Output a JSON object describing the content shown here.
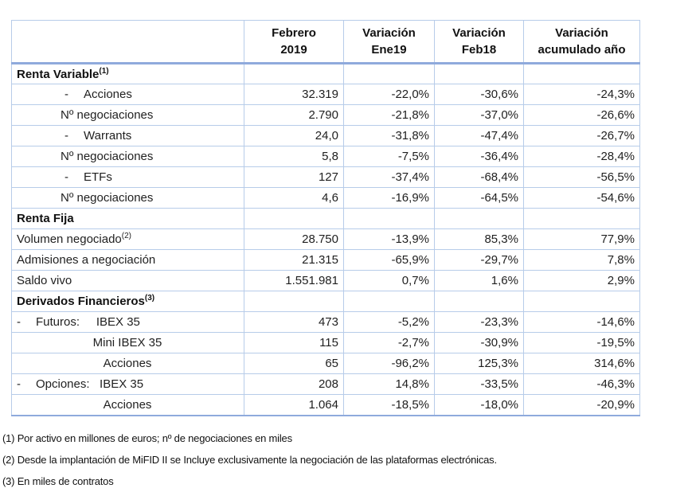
{
  "colors": {
    "border_light": "#B7CCE9",
    "border_heavy": "#8FAADC",
    "text": "#1f1f1f"
  },
  "table": {
    "dash_glyph": "-",
    "headers": [
      {
        "line1": "Febrero",
        "line2": "2019"
      },
      {
        "line1": "Variación",
        "line2": "Ene19"
      },
      {
        "line1": "Variación",
        "line2": "Feb18"
      },
      {
        "line1": "Variación",
        "line2": "acumulado año"
      }
    ],
    "rows": [
      {
        "style": "section",
        "indent": "none",
        "label": "Renta Variable",
        "sup": "(1)",
        "values": [
          "",
          "",
          "",
          ""
        ]
      },
      {
        "style": "data",
        "indent": "dash",
        "label": "Acciones",
        "sup": "",
        "values": [
          "32.319",
          "-22,0%",
          "-30,6%",
          "-24,3%"
        ]
      },
      {
        "style": "data",
        "indent": "sub",
        "label": "Nº negociaciones",
        "sup": "",
        "values": [
          "2.790",
          "-21,8%",
          "-37,0%",
          "-26,6%"
        ]
      },
      {
        "style": "data",
        "indent": "dash",
        "label": "Warrants",
        "sup": "",
        "values": [
          "24,0",
          "-31,8%",
          "-47,4%",
          "-26,7%"
        ]
      },
      {
        "style": "data",
        "indent": "sub",
        "label": "Nº negociaciones",
        "sup": "",
        "values": [
          "5,8",
          "-7,5%",
          "-36,4%",
          "-28,4%"
        ]
      },
      {
        "style": "data",
        "indent": "dash",
        "label": "ETFs",
        "sup": "",
        "values": [
          "127",
          "-37,4%",
          "-68,4%",
          "-56,5%"
        ]
      },
      {
        "style": "data",
        "indent": "sub",
        "label": "Nº negociaciones",
        "sup": "",
        "values": [
          "4,6",
          "-16,9%",
          "-64,5%",
          "-54,6%"
        ]
      },
      {
        "style": "section",
        "indent": "none",
        "label": "Renta Fija",
        "sup": "",
        "values": [
          "",
          "",
          "",
          ""
        ]
      },
      {
        "style": "data",
        "indent": "none",
        "label": "Volumen negociado",
        "sup": "(2)",
        "values": [
          "28.750",
          "-13,9%",
          "85,3%",
          "77,9%"
        ]
      },
      {
        "style": "data",
        "indent": "none",
        "label": "Admisiones a negociación",
        "sup": "",
        "values": [
          "21.315",
          "-65,9%",
          "-29,7%",
          "7,8%"
        ]
      },
      {
        "style": "data",
        "indent": "none",
        "label": "Saldo vivo",
        "sup": "",
        "values": [
          "1.551.981",
          "0,7%",
          "1,6%",
          "2,9%"
        ]
      },
      {
        "style": "section",
        "indent": "none",
        "label": "Derivados Financieros",
        "sup": "(3)",
        "values": [
          "",
          "",
          "",
          ""
        ]
      },
      {
        "style": "data",
        "indent": "dashleft",
        "label": "Futuros:     IBEX 35",
        "sup": "",
        "values": [
          "473",
          "-5,2%",
          "-23,3%",
          "-14,6%"
        ]
      },
      {
        "style": "data",
        "indent": "center",
        "label": "Mini IBEX 35",
        "sup": "",
        "values": [
          "115",
          "-2,7%",
          "-30,9%",
          "-19,5%"
        ]
      },
      {
        "style": "data",
        "indent": "center",
        "label": "Acciones",
        "sup": "",
        "values": [
          "65",
          "-96,2%",
          "125,3%",
          "314,6%"
        ]
      },
      {
        "style": "data",
        "indent": "dashleft",
        "label": "Opciones:   IBEX 35",
        "sup": "",
        "values": [
          "208",
          "14,8%",
          "-33,5%",
          "-46,3%"
        ]
      },
      {
        "style": "data",
        "indent": "center",
        "label": "Acciones",
        "sup": "",
        "values": [
          "1.064",
          "-18,5%",
          "-18,0%",
          "-20,9%"
        ]
      }
    ]
  },
  "footnotes": [
    "(1) Por activo en millones de euros; nº de negociaciones en miles",
    "(2) Desde la implantación de MiFID II se Incluye exclusivamente la negociación de las plataformas electrónicas.",
    "(3) En miles de contratos"
  ]
}
